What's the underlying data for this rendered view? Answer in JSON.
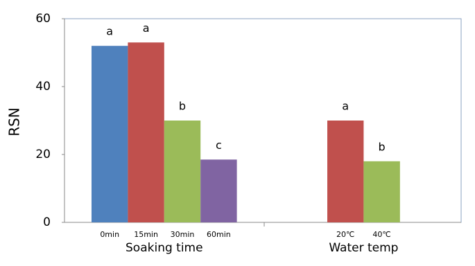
{
  "chart_data": {
    "type": "bar",
    "y_label": "RSN",
    "ylim": [
      0,
      60
    ],
    "yticks": [
      0,
      20,
      40,
      60
    ],
    "groups": [
      {
        "name": "Soaking time",
        "categories": [
          "0min",
          "15min",
          "30min",
          "60min"
        ],
        "values": [
          52,
          53,
          30,
          18.5
        ],
        "colors": [
          "#4f81bd",
          "#c0504d",
          "#9bbb59",
          "#8064a2"
        ],
        "letters": [
          "a",
          "a",
          "b",
          "c"
        ]
      },
      {
        "name": "Water temp",
        "categories": [
          "20℃",
          "40℃"
        ],
        "values": [
          30,
          18
        ],
        "colors": [
          "#c0504d",
          "#9bbb59"
        ],
        "letters": [
          "a",
          "b"
        ]
      }
    ]
  }
}
